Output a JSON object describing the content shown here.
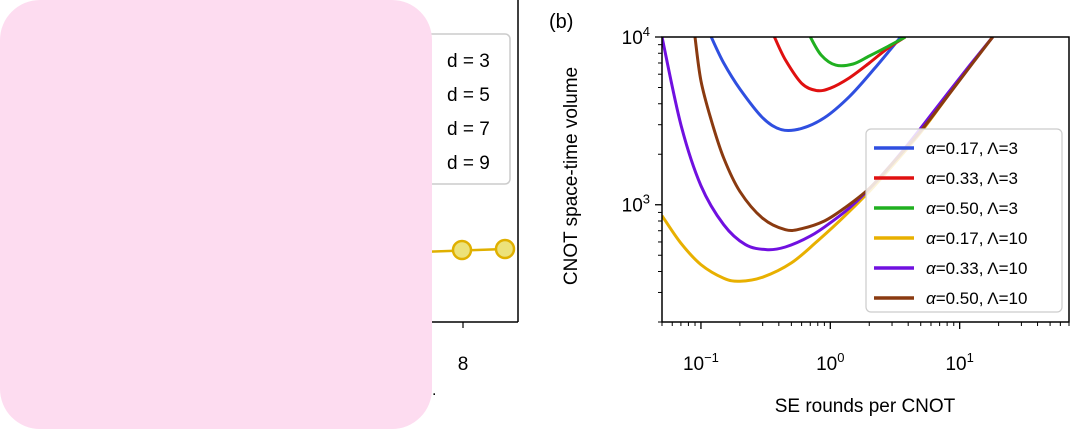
{
  "occluder_color": "#fddcf0",
  "left_panel": {
    "legend": [
      "d = 3",
      "d = 5",
      "d = 7",
      "d = 9"
    ],
    "x_tick_labels": [
      {
        "value": 8,
        "label": "8"
      }
    ],
    "series_color": "#e0b000",
    "visible_points": [
      {
        "x": 8,
        "y_fraction": 0.56
      },
      {
        "x": 9.2,
        "y_fraction": 0.56
      }
    ],
    "stray_mark": "."
  },
  "chart_data": {
    "type": "line",
    "panel_label": "(b)",
    "xlabel": "SE rounds per CNOT",
    "ylabel": "CNOT space-time volume",
    "xscale": "log",
    "yscale": "log",
    "xlim": [
      0.05,
      70
    ],
    "ylim": [
      200,
      10000
    ],
    "x_ticks": [
      {
        "value": 0.1,
        "base": "10",
        "exp": "−1"
      },
      {
        "value": 1,
        "base": "10",
        "exp": "0"
      },
      {
        "value": 10,
        "base": "10",
        "exp": "1"
      }
    ],
    "y_ticks": [
      {
        "value": 1000,
        "base": "10",
        "exp": "3"
      },
      {
        "value": 10000,
        "base": "10",
        "exp": "4"
      }
    ],
    "legend_position": "right",
    "series": [
      {
        "name": "α=0.17, Λ=3",
        "greek": "α",
        "rest": "=0.17, Λ=3",
        "color": "#2f4fe0",
        "x": [
          0.12,
          0.15,
          0.2,
          0.3,
          0.42,
          0.6,
          0.9,
          1.4,
          2.2,
          3.5
        ],
        "y": [
          10000,
          7000,
          4900,
          3300,
          2800,
          2850,
          3300,
          4400,
          6500,
          10000
        ]
      },
      {
        "name": "α=0.33, Λ=3",
        "greek": "α",
        "rest": "=0.33, Λ=3",
        "color": "#e01010",
        "x": [
          0.37,
          0.45,
          0.6,
          0.78,
          1.0,
          1.4,
          2.0,
          2.8,
          3.8
        ],
        "y": [
          10000,
          7300,
          5300,
          4800,
          4950,
          5700,
          7000,
          8600,
          10000
        ]
      },
      {
        "name": "α=0.50, Λ=3",
        "greek": "α",
        "rest": "=0.50, Λ=3",
        "color": "#20b020",
        "x": [
          0.7,
          0.85,
          1.1,
          1.5,
          2.0,
          2.8,
          3.8
        ],
        "y": [
          10000,
          7800,
          6800,
          6900,
          7700,
          8800,
          10000
        ]
      },
      {
        "name": "α=0.17, Λ=10",
        "greek": "α",
        "rest": "=0.17, Λ=10",
        "color": "#e8b000",
        "x": [
          0.05,
          0.07,
          0.1,
          0.15,
          0.2,
          0.3,
          0.5,
          0.8,
          1.3,
          2.0,
          3.0,
          5.0,
          8.0,
          13.0,
          18.0
        ],
        "y": [
          860,
          590,
          440,
          365,
          350,
          370,
          450,
          610,
          860,
          1200,
          1700,
          2700,
          4400,
          7300,
          10000
        ]
      },
      {
        "name": "α=0.33, Λ=10",
        "greek": "α",
        "rest": "=0.33, Λ=10",
        "color": "#7010e0",
        "x": [
          0.05,
          0.07,
          0.1,
          0.15,
          0.22,
          0.32,
          0.45,
          0.7,
          1.0,
          1.5,
          2.5,
          4.0,
          7.0,
          12.0,
          18.0
        ],
        "y": [
          10000,
          3000,
          1300,
          760,
          580,
          540,
          560,
          650,
          780,
          1000,
          1500,
          2300,
          4000,
          6800,
          10000
        ]
      },
      {
        "name": "α=0.50, Λ=10",
        "greek": "α",
        "rest": "=0.50, Λ=10",
        "color": "#8a3a10",
        "x": [
          0.09,
          0.1,
          0.12,
          0.15,
          0.2,
          0.3,
          0.45,
          0.6,
          0.9,
          1.3,
          2.0,
          3.0,
          5.0,
          8.0,
          13.0,
          18.0
        ],
        "y": [
          10000,
          5500,
          3200,
          1900,
          1200,
          830,
          710,
          720,
          800,
          960,
          1250,
          1750,
          2750,
          4400,
          7200,
          10000
        ]
      }
    ]
  }
}
